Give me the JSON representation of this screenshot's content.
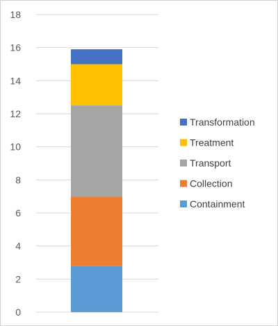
{
  "chart_data": {
    "type": "bar",
    "stacked": true,
    "categories": [
      ""
    ],
    "series": [
      {
        "name": "Containment",
        "values": [
          2.8
        ],
        "color": "#5B9BD5"
      },
      {
        "name": "Collection",
        "values": [
          4.2
        ],
        "color": "#ED7D31"
      },
      {
        "name": "Transport",
        "values": [
          5.5
        ],
        "color": "#A5A5A5"
      },
      {
        "name": "Treatment",
        "values": [
          2.5
        ],
        "color": "#FFC000"
      },
      {
        "name": "Transformation",
        "values": [
          0.9
        ],
        "color": "#4472C4"
      }
    ],
    "ylim": [
      0,
      18
    ],
    "yticks": [
      "0",
      "2",
      "4",
      "6",
      "8",
      "10",
      "12",
      "14",
      "16",
      "18"
    ],
    "grid": true,
    "legend_position": "right",
    "legend_order": [
      "Transformation",
      "Treatment",
      "Transport",
      "Collection",
      "Containment"
    ]
  }
}
